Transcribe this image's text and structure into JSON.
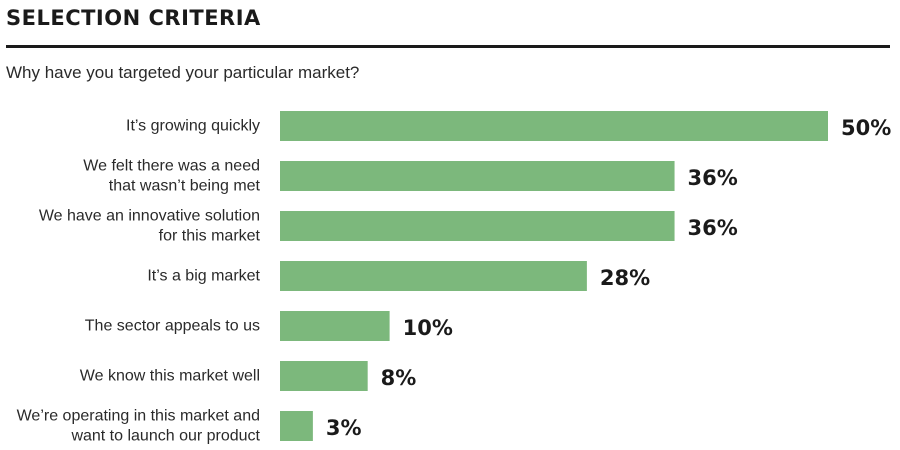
{
  "header": {
    "title": "SELECTION CRITERIA",
    "subtitle": "Why have you targeted your particular market?"
  },
  "colors": {
    "bar": "#7cb87c",
    "text": "#1a1a1a",
    "rule": "#1a1a1a"
  },
  "chart_data": {
    "type": "bar",
    "orientation": "horizontal",
    "title": "SELECTION CRITERIA",
    "subtitle": "Why have you targeted your particular market?",
    "categories": [
      [
        "It’s growing quickly"
      ],
      [
        "We felt there was a need",
        "that wasn’t being met"
      ],
      [
        "We have an innovative solution",
        "for this market"
      ],
      [
        "It’s a big market"
      ],
      [
        "The sector appeals to us"
      ],
      [
        "We know this market well"
      ],
      [
        "We’re operating in this market and",
        "want to launch our product"
      ]
    ],
    "values": [
      50,
      36,
      36,
      28,
      10,
      8,
      3
    ],
    "value_labels": [
      "50%",
      "36%",
      "36%",
      "28%",
      "10%",
      "8%",
      "3%"
    ],
    "unit": "%",
    "xlim": [
      0,
      50
    ],
    "grid": false,
    "legend": "none"
  }
}
